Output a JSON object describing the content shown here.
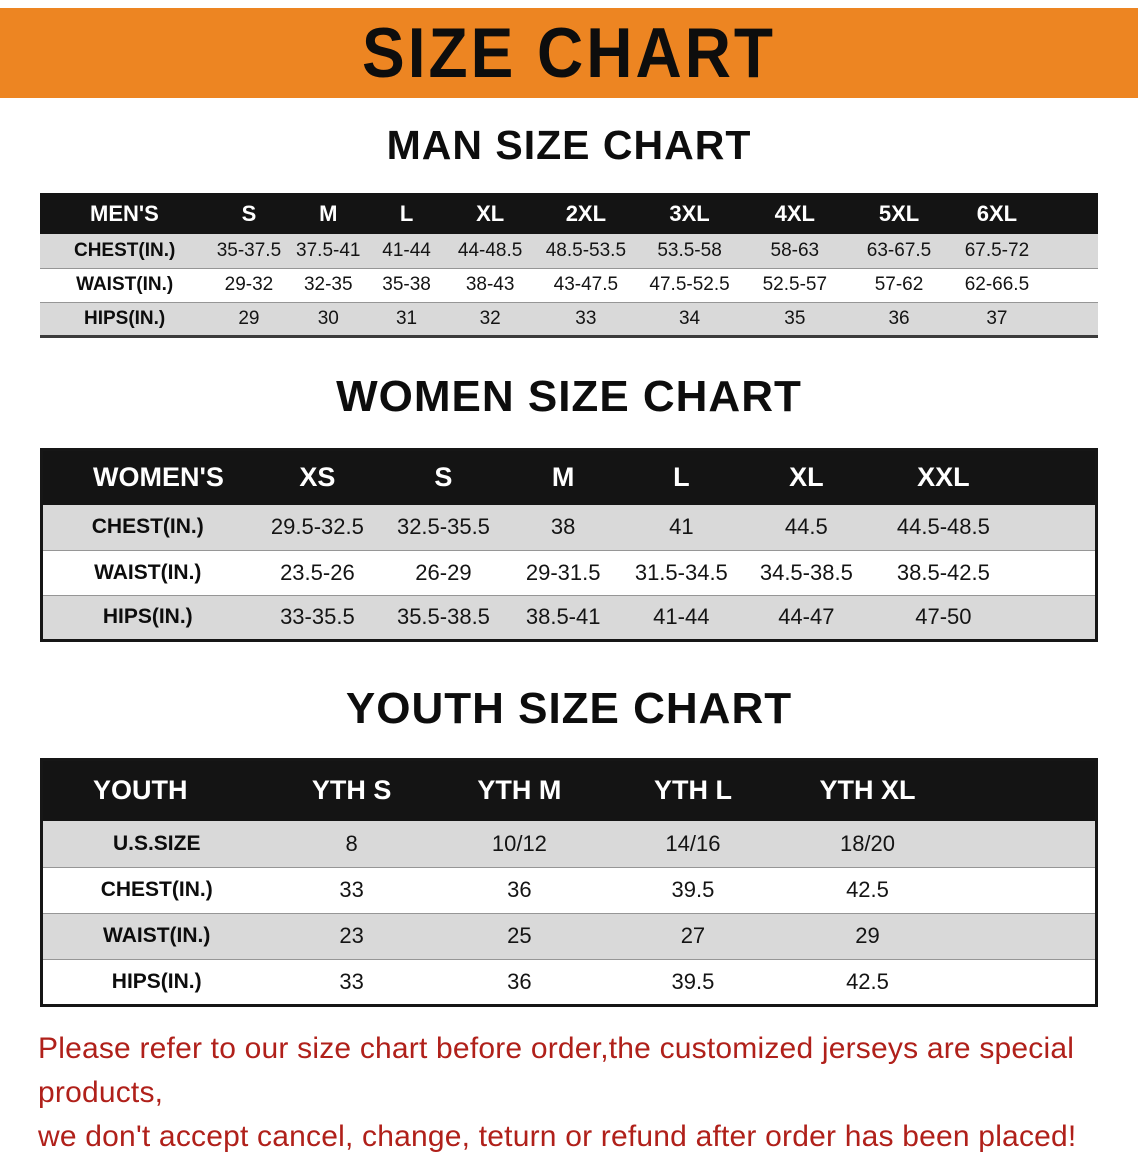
{
  "banner": {
    "title": "SIZE CHART",
    "bg_color": "#ED8522"
  },
  "colors": {
    "header_row": "#141414",
    "stripe": "#D9D9D9",
    "footer_text": "#B0201A"
  },
  "sections": [
    {
      "heading": "MAN SIZE CHART",
      "table": {
        "header": [
          "MEN'S",
          "S",
          "M",
          "L",
          "XL",
          "2XL",
          "3XL",
          "4XL",
          "5XL",
          "6XL"
        ],
        "rows": [
          [
            "CHEST(IN.)",
            "35-37.5",
            "37.5-41",
            "41-44",
            "44-48.5",
            "48.5-53.5",
            "53.5-58",
            "58-63",
            "63-67.5",
            "67.5-72"
          ],
          [
            "WAIST(IN.)",
            "29-32",
            "32-35",
            "35-38",
            "38-43",
            "43-47.5",
            "47.5-52.5",
            "52.5-57",
            "57-62",
            "62-66.5"
          ],
          [
            "HIPS(IN.)",
            "29",
            "30",
            "31",
            "32",
            "33",
            "34",
            "35",
            "36",
            "37"
          ]
        ]
      }
    },
    {
      "heading": "WOMEN SIZE CHART",
      "table": {
        "header": [
          "WOMEN'S",
          "XS",
          "S",
          "M",
          "L",
          "XL",
          "XXL"
        ],
        "rows": [
          [
            "CHEST(IN.)",
            "29.5-32.5",
            "32.5-35.5",
            "38",
            "41",
            "44.5",
            "44.5-48.5"
          ],
          [
            "WAIST(IN.)",
            "23.5-26",
            "26-29",
            "29-31.5",
            "31.5-34.5",
            "34.5-38.5",
            "38.5-42.5"
          ],
          [
            "HIPS(IN.)",
            "33-35.5",
            "35.5-38.5",
            "38.5-41",
            "41-44",
            "44-47",
            "47-50"
          ]
        ]
      }
    },
    {
      "heading": "YOUTH SIZE CHART",
      "table": {
        "header": [
          "YOUTH",
          "YTH S",
          "YTH M",
          "YTH L",
          "YTH XL"
        ],
        "rows": [
          [
            "U.S.SIZE",
            "8",
            "10/12",
            "14/16",
            "18/20"
          ],
          [
            "CHEST(IN.)",
            "33",
            "36",
            "39.5",
            "42.5"
          ],
          [
            "WAIST(IN.)",
            "23",
            "25",
            "27",
            "29"
          ],
          [
            "HIPS(IN.)",
            "33",
            "36",
            "39.5",
            "42.5"
          ]
        ]
      }
    }
  ],
  "footer": {
    "line1": "Please refer to our size chart before order,the customized jerseys are special products,",
    "line2": "we don't accept cancel, change, teturn or refund after order has been placed!"
  }
}
